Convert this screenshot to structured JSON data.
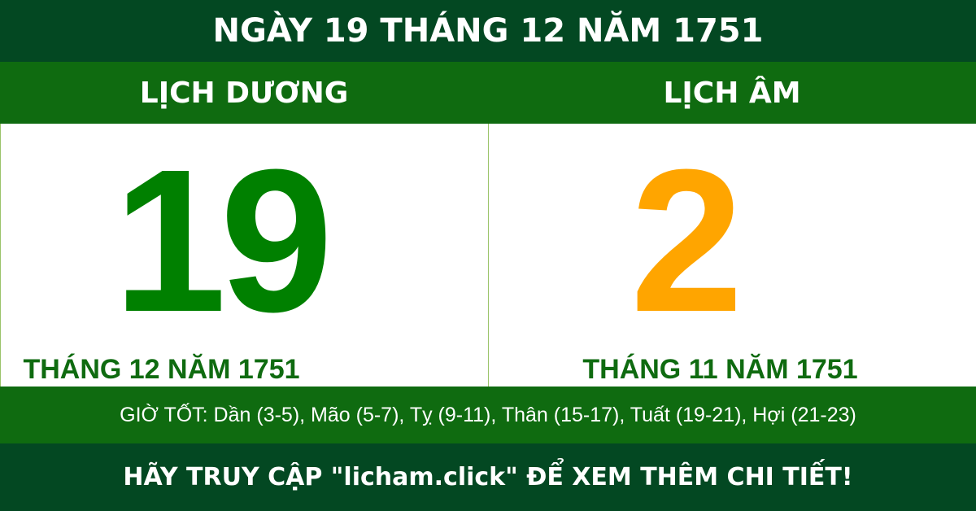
{
  "title": "NGÀY 19 THÁNG 12 NĂM 1751",
  "solar": {
    "heading": "LỊCH DƯƠNG",
    "day": "19",
    "month_year": "THÁNG 12 NĂM 1751"
  },
  "lunar": {
    "heading": "LỊCH ÂM",
    "day": "2",
    "month_year": "THÁNG 11 NĂM 1751"
  },
  "good_hours": "GIỜ TỐT: Dần (3-5), Mão (5-7), Tỵ (9-11), Thân (15-17), Tuất (19-21), Hợi (21-23)",
  "footer": "HÃY TRUY CẬP \"licham.click\" ĐỂ XEM THÊM CHI TIẾT!",
  "colors": {
    "dark_green": "#034822",
    "green": "#0f6b10",
    "solar_day": "#008000",
    "lunar_day": "#ffa500"
  }
}
